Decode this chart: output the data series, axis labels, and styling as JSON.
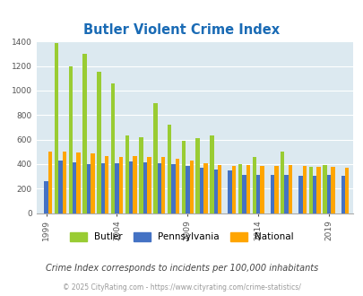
{
  "title": "Butler Violent Crime Index",
  "title_color": "#1a6bb5",
  "subtitle": "Crime Index corresponds to incidents per 100,000 inhabitants",
  "footer": "© 2025 CityRating.com - https://www.cityrating.com/crime-statistics/",
  "years": [
    1999,
    2000,
    2001,
    2002,
    2003,
    2004,
    2005,
    2006,
    2007,
    2008,
    2009,
    2010,
    2011,
    2012,
    2013,
    2014,
    2015,
    2016,
    2017,
    2018,
    2019,
    2020
  ],
  "butler": [
    0,
    1390,
    1195,
    1300,
    1155,
    1055,
    630,
    620,
    900,
    720,
    590,
    610,
    635,
    0,
    400,
    455,
    0,
    505,
    0,
    380,
    390,
    0
  ],
  "pennsylvania": [
    260,
    425,
    415,
    400,
    405,
    410,
    420,
    415,
    405,
    400,
    385,
    370,
    355,
    350,
    315,
    315,
    310,
    310,
    305,
    305,
    310,
    305
  ],
  "national": [
    505,
    505,
    495,
    490,
    465,
    455,
    465,
    460,
    455,
    440,
    430,
    405,
    390,
    385,
    395,
    385,
    385,
    390,
    385,
    375,
    375,
    370
  ],
  "butler_color": "#99cc33",
  "pennsylvania_color": "#4472c4",
  "national_color": "#ffa500",
  "bg_color": "#dce9f0",
  "ylim": [
    0,
    1400
  ],
  "yticks": [
    0,
    200,
    400,
    600,
    800,
    1000,
    1200,
    1400
  ],
  "xtick_years": [
    1999,
    2004,
    2009,
    2014,
    2019
  ],
  "legend_labels": [
    "Butler",
    "Pennsylvania",
    "National"
  ]
}
